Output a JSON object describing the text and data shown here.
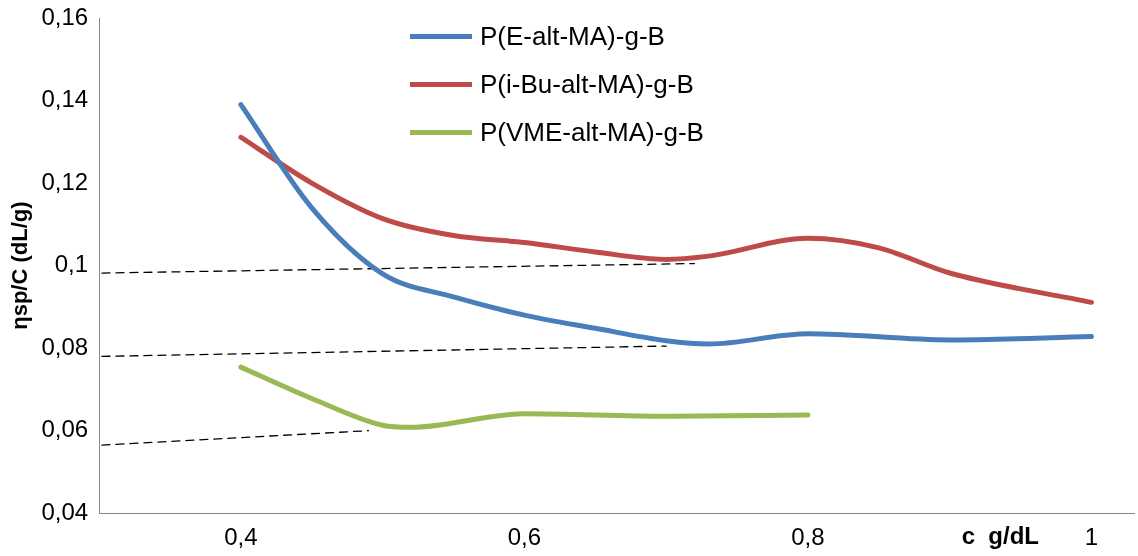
{
  "chart_data": {
    "type": "line",
    "xlabel": "c  g/dL",
    "ylabel": "ηsp/C (dL/g)",
    "xlim": [
      0.3,
      1.03
    ],
    "ylim": [
      0.04,
      0.16
    ],
    "xticks": [
      {
        "value": 0.4,
        "label": "0,4"
      },
      {
        "value": 0.6,
        "label": "0,6"
      },
      {
        "value": 0.8,
        "label": "0,8"
      },
      1
    ],
    "yticks": [
      {
        "value": 0.04,
        "label": "0,04"
      },
      {
        "value": 0.06,
        "label": "0,06"
      },
      {
        "value": 0.08,
        "label": "0,08"
      },
      {
        "value": 0.1,
        "label": "0,1"
      },
      {
        "value": 0.12,
        "label": "0,12"
      },
      {
        "value": 0.14,
        "label": "0,14"
      },
      {
        "value": 0.16,
        "label": "0,16"
      }
    ],
    "grid": false,
    "legend": "top",
    "marker": "none",
    "line_style": "solid",
    "series": [
      {
        "name": "P(E-alt-MA)-g-B",
        "color": "#4a7ebb",
        "x": [
          0.4,
          0.45,
          0.5,
          0.55,
          0.6,
          0.65,
          0.7,
          0.73,
          0.8,
          0.9,
          1.0
        ],
        "values": [
          0.139,
          0.114,
          0.098,
          0.0924,
          0.088,
          0.0848,
          0.0818,
          0.081,
          0.0835,
          0.082,
          0.0828
        ]
      },
      {
        "name": "P(i-Bu-alt-MA)-g-B",
        "color": "#be4b48",
        "x": [
          0.4,
          0.45,
          0.5,
          0.55,
          0.6,
          0.65,
          0.7,
          0.73,
          0.8,
          0.85,
          0.9,
          1.0
        ],
        "values": [
          0.1311,
          0.12,
          0.1114,
          0.1073,
          0.1056,
          0.1033,
          0.1015,
          0.1023,
          0.1066,
          0.1043,
          0.0982,
          0.0911
        ]
      },
      {
        "name": "P(VME-alt-MA)-g-B",
        "color": "#98b954",
        "x": [
          0.4,
          0.45,
          0.5,
          0.52,
          0.6,
          0.7,
          0.8
        ],
        "values": [
          0.0754,
          0.0678,
          0.0613,
          0.0608,
          0.0641,
          0.0635,
          0.0638
        ]
      },
      {
        "color": "#000000",
        "line_style": "dashed",
        "x": [
          0.302,
          0.72
        ],
        "values": [
          0.0982,
          0.1005
        ]
      },
      {
        "color": "#000000",
        "line_style": "dashed",
        "x": [
          0.302,
          0.7
        ],
        "values": [
          0.078,
          0.0805
        ]
      },
      {
        "color": "#000000",
        "line_style": "dashed",
        "x": [
          0.302,
          0.49
        ],
        "values": [
          0.0565,
          0.06
        ]
      }
    ]
  }
}
